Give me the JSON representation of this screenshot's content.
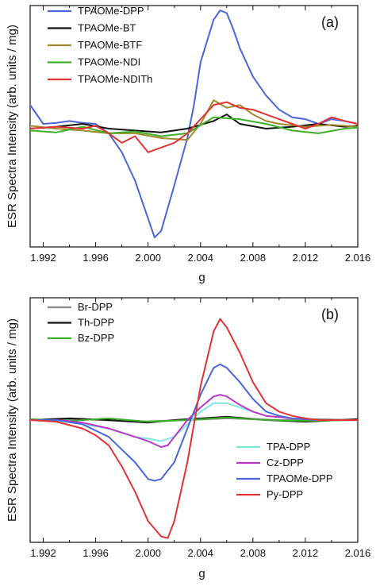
{
  "chart_data": [
    {
      "type": "line",
      "panel_label": "(a)",
      "xlabel": "g",
      "ylabel": "ESR Spectra Intensity (arb. units / mg)",
      "xlim": [
        1.991,
        2.016
      ],
      "ylim": [
        -1.25,
        1.3
      ],
      "xticks": [
        "1.992",
        "1.996",
        "2.000",
        "2.004",
        "2.008",
        "2.012",
        "2.016"
      ],
      "legend_position": "top-left",
      "series": [
        {
          "name": "TPAOMe-DPP",
          "color": "#4a66d8",
          "x": [
            1.991,
            1.992,
            1.993,
            1.994,
            1.995,
            1.996,
            1.997,
            1.998,
            1.999,
            2.0,
            2.0005,
            2.001,
            2.002,
            2.003,
            2.0035,
            2.004,
            2.005,
            2.0055,
            2.006,
            2.0065,
            2.007,
            2.008,
            2.009,
            2.01,
            2.011,
            2.012,
            2.013,
            2.014,
            2.015,
            2.016
          ],
          "y": [
            0.25,
            0.05,
            0.06,
            0.08,
            0.06,
            0.05,
            -0.05,
            -0.25,
            -0.55,
            -0.95,
            -1.15,
            -1.08,
            -0.6,
            -0.1,
            0.25,
            0.7,
            1.15,
            1.25,
            1.22,
            1.05,
            0.85,
            0.55,
            0.35,
            0.2,
            0.12,
            0.1,
            0.05,
            0.1,
            0.08,
            0.05
          ]
        },
        {
          "name": "TPAOMe-BT",
          "color": "#111111",
          "x": [
            1.991,
            1.993,
            1.995,
            1.997,
            1.999,
            2.001,
            2.003,
            2.005,
            2.006,
            2.007,
            2.009,
            2.011,
            2.013,
            2.015,
            2.016
          ],
          "y": [
            0.0,
            0.02,
            0.05,
            0.0,
            -0.02,
            -0.04,
            0.0,
            0.08,
            0.15,
            0.05,
            0.0,
            0.02,
            0.05,
            0.02,
            0.03
          ]
        },
        {
          "name": "TPAOMe-BTF",
          "color": "#a08a2c",
          "x": [
            1.991,
            1.993,
            1.995,
            1.997,
            1.999,
            2.001,
            2.003,
            2.004,
            2.005,
            2.006,
            2.007,
            2.008,
            2.009,
            2.01,
            2.012,
            2.014,
            2.016
          ],
          "y": [
            0.03,
            0.0,
            -0.02,
            -0.05,
            -0.05,
            -0.1,
            -0.12,
            0.05,
            0.3,
            0.22,
            0.25,
            0.15,
            0.08,
            0.05,
            0.02,
            0.04,
            0.02
          ]
        },
        {
          "name": "TPAOMe-NDI",
          "color": "#3fae2a",
          "x": [
            1.991,
            1.993,
            1.995,
            1.997,
            1.999,
            2.001,
            2.003,
            2.005,
            2.007,
            2.009,
            2.011,
            2.013,
            2.015,
            2.016
          ],
          "y": [
            -0.02,
            -0.04,
            0.02,
            -0.05,
            -0.03,
            -0.08,
            -0.05,
            0.12,
            0.1,
            0.05,
            -0.02,
            -0.05,
            0.0,
            0.01
          ]
        },
        {
          "name": "TPAOMe-NDITh",
          "color": "#e03434",
          "x": [
            1.991,
            1.993,
            1.995,
            1.996,
            1.997,
            1.998,
            1.999,
            2.0,
            2.001,
            2.002,
            2.003,
            2.004,
            2.005,
            2.006,
            2.007,
            2.008,
            2.009,
            2.01,
            2.011,
            2.012,
            2.013,
            2.014,
            2.015,
            2.016
          ],
          "y": [
            0.0,
            0.02,
            0.0,
            0.03,
            -0.05,
            -0.15,
            -0.08,
            -0.25,
            -0.2,
            -0.15,
            -0.05,
            0.1,
            0.25,
            0.28,
            0.22,
            0.2,
            0.15,
            0.1,
            0.05,
            0.0,
            0.05,
            0.12,
            0.08,
            0.05
          ]
        }
      ]
    },
    {
      "type": "line",
      "panel_label": "(b)",
      "xlabel": "g",
      "ylabel": "ESR Spectra Intensity (arb. units / mg)",
      "xlim": [
        1.991,
        2.016
      ],
      "ylim": [
        -1.45,
        1.45
      ],
      "xticks": [
        "1.992",
        "1.996",
        "2.000",
        "2.004",
        "2.008",
        "2.012",
        "2.016"
      ],
      "legend_top_position": "top-left",
      "legend_bottom_position": "bottom-right",
      "series": [
        {
          "name": "Br-DPP",
          "color": "#888888",
          "x": [
            1.991,
            1.995,
            1.999,
            2.003,
            2.006,
            2.01,
            2.013,
            2.016
          ],
          "y": [
            0.0,
            0.01,
            -0.02,
            0.0,
            0.02,
            0.0,
            0.01,
            0.0
          ]
        },
        {
          "name": "Th-DPP",
          "color": "#111111",
          "x": [
            1.991,
            1.994,
            1.997,
            2.0,
            2.002,
            2.004,
            2.006,
            2.009,
            2.012,
            2.016
          ],
          "y": [
            0.0,
            0.02,
            0.0,
            -0.03,
            0.0,
            0.02,
            0.04,
            0.0,
            -0.02,
            0.01
          ]
        },
        {
          "name": "Bz-DPP",
          "color": "#3fae2a",
          "x": [
            1.991,
            1.994,
            1.997,
            2.0,
            2.003,
            2.006,
            2.009,
            2.012,
            2.016
          ],
          "y": [
            0.01,
            -0.01,
            0.02,
            -0.02,
            0.0,
            0.03,
            0.0,
            -0.01,
            0.0
          ]
        },
        {
          "name": "TPA-DPP",
          "color": "#7ee8e0",
          "x": [
            1.991,
            1.993,
            1.995,
            1.997,
            1.999,
            2.0,
            2.001,
            2.002,
            2.003,
            2.004,
            2.005,
            2.006,
            2.007,
            2.008,
            2.009,
            2.011,
            2.013,
            2.016
          ],
          "y": [
            0.0,
            0.0,
            -0.05,
            -0.1,
            -0.2,
            -0.22,
            -0.25,
            -0.2,
            -0.05,
            0.1,
            0.2,
            0.2,
            0.15,
            0.1,
            0.05,
            0.02,
            0.0,
            0.0
          ]
        },
        {
          "name": "Cz-DPP",
          "color": "#b838c8",
          "x": [
            1.991,
            1.993,
            1.995,
            1.997,
            1.999,
            2.0,
            2.001,
            2.0015,
            2.002,
            2.003,
            2.004,
            2.005,
            2.0055,
            2.006,
            2.007,
            2.008,
            2.009,
            2.011,
            2.013,
            2.016
          ],
          "y": [
            0.0,
            0.0,
            -0.03,
            -0.1,
            -0.2,
            -0.25,
            -0.32,
            -0.3,
            -0.2,
            0.0,
            0.15,
            0.28,
            0.3,
            0.28,
            0.18,
            0.1,
            0.05,
            0.02,
            0.0,
            0.0
          ]
        },
        {
          "name": "TPAOMe-DPP",
          "color": "#4a66d8",
          "x": [
            1.991,
            1.993,
            1.995,
            1.997,
            1.998,
            1.999,
            2.0,
            2.0005,
            2.001,
            2.002,
            2.003,
            2.004,
            2.005,
            2.0055,
            2.006,
            2.007,
            2.008,
            2.009,
            2.01,
            2.011,
            2.013,
            2.016
          ],
          "y": [
            0.0,
            0.0,
            -0.05,
            -0.2,
            -0.35,
            -0.5,
            -0.7,
            -0.72,
            -0.7,
            -0.5,
            -0.1,
            0.3,
            0.62,
            0.66,
            0.62,
            0.45,
            0.25,
            0.1,
            0.05,
            0.02,
            0.0,
            0.0
          ]
        },
        {
          "name": "Py-DPP",
          "color": "#e03434",
          "x": [
            1.991,
            1.993,
            1.995,
            1.996,
            1.997,
            1.998,
            1.999,
            2.0,
            2.001,
            2.0015,
            2.002,
            2.003,
            2.004,
            2.005,
            2.0055,
            2.006,
            2.007,
            2.008,
            2.009,
            2.01,
            2.011,
            2.012,
            2.013,
            2.016
          ],
          "y": [
            0.0,
            -0.02,
            -0.1,
            -0.18,
            -0.3,
            -0.55,
            -0.85,
            -1.2,
            -1.38,
            -1.4,
            -1.2,
            -0.5,
            0.4,
            1.05,
            1.2,
            1.1,
            0.8,
            0.45,
            0.2,
            0.1,
            0.05,
            0.02,
            0.0,
            0.0
          ]
        }
      ]
    }
  ]
}
